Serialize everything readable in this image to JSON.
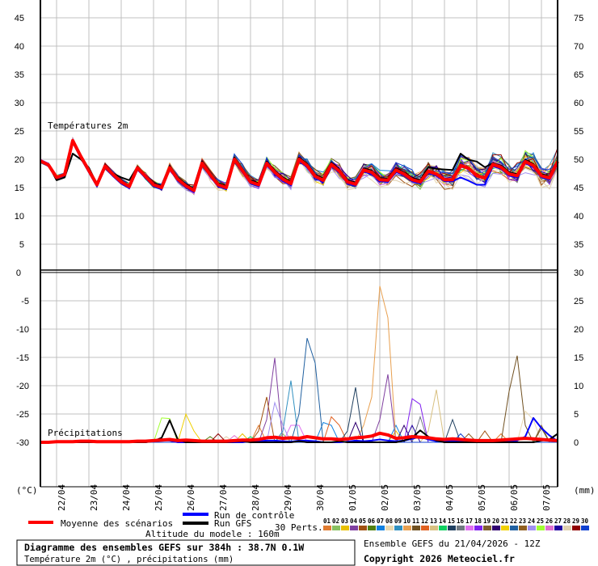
{
  "chart_data": {
    "type": "line",
    "title": "Diagramme des ensembles GEFS sur 384h : 38.7N 0.1W",
    "subtitle": "Température 2m (°C) , précipitations (mm)",
    "run_info": "Ensemble GEFS du 21/04/2026 - 12Z",
    "copyright": "Copyright 2026 Meteociel.fr",
    "altitude": "Altitude du modele : 160m",
    "time_step_hours": 6,
    "x_tick_labels": [
      "22/04",
      "23/04",
      "24/04",
      "25/04",
      "26/04",
      "27/04",
      "28/04",
      "29/04",
      "30/04",
      "01/05",
      "02/05",
      "03/05",
      "04/05",
      "05/05",
      "06/05",
      "07/05"
    ],
    "temperature_panel": {
      "label": "Températures 2m",
      "ylim": [
        0,
        45
      ],
      "left_ticks": [
        "45",
        "40",
        "35",
        "30",
        "25",
        "20",
        "15",
        "10",
        "5"
      ],
      "right_ticks": [
        "75",
        "70",
        "65",
        "60",
        "55",
        "50",
        "45",
        "40",
        "35"
      ],
      "mean": [
        19.7,
        19,
        16.8,
        17.3,
        23.3,
        20.5,
        18,
        15.5,
        18.8,
        17.3,
        16,
        15.2,
        18.5,
        17,
        15.5,
        15,
        18.5,
        16.5,
        15.3,
        14.5,
        19.3,
        17.3,
        15.5,
        15,
        20,
        18,
        16,
        15.5,
        19.3,
        17.7,
        16.5,
        15.7,
        20,
        18.9,
        17,
        16.3,
        19.1,
        17.9,
        16,
        15.6,
        18.1,
        17.7,
        16.4,
        16.3,
        18.1,
        17.4,
        16.4,
        16,
        17.9,
        17.4,
        16.4,
        16.4,
        18.9,
        18.4,
        17.1,
        16.7,
        19.1,
        18.6,
        17.4,
        17.1,
        19.6,
        18.9,
        17.1,
        16.7,
        19.6
      ],
      "gfs": [
        19.8,
        19,
        16.3,
        16.8,
        21,
        20,
        18.5,
        15.6,
        19,
        17.5,
        16.8,
        16.3,
        18.7,
        17.2,
        15.8,
        15.3,
        18.8,
        16.8,
        15.6,
        14.8,
        19.6,
        17.6,
        15.8,
        15.3,
        20.3,
        18.3,
        16.3,
        15.8,
        19.6,
        18,
        16.8,
        16,
        20.3,
        19.2,
        17.3,
        16.6,
        19.4,
        18.2,
        16.3,
        15.9,
        18.4,
        18,
        16.7,
        16.6,
        18.4,
        17.7,
        16.7,
        16.3,
        18.6,
        18.3,
        18.2,
        18.1,
        21,
        19.9,
        19.6,
        18.6,
        19.3,
        18.9,
        17.7,
        17.4,
        19.9,
        19.2,
        17.4,
        17,
        19.9
      ],
      "control": [
        19.6,
        18.8,
        16.7,
        17.1,
        23,
        20.2,
        17.7,
        15.2,
        18.5,
        17,
        15.7,
        14.9,
        18.2,
        16.7,
        15.2,
        14.7,
        18.2,
        16.2,
        15,
        14.2,
        19,
        17,
        15.2,
        14.7,
        19.7,
        17.7,
        15.7,
        15.2,
        19,
        17.4,
        16.2,
        15.4,
        19.7,
        18.6,
        16.7,
        16,
        18.8,
        17.6,
        15.7,
        15.3,
        17.8,
        17.4,
        16.1,
        16,
        17.8,
        17.1,
        16.1,
        15.7,
        17.6,
        17.1,
        16.1,
        16.1,
        16.8,
        16.2,
        15.5,
        15.5,
        18.8,
        18.3,
        17.1,
        16.8,
        19.3,
        18.6,
        16.8,
        16.4,
        19.3
      ],
      "member_spread_start_c": 0.35,
      "member_spread_end_c": 1.5
    },
    "precipitation_panel": {
      "label": "Précipitations",
      "ylim_mm": [
        0,
        30
      ],
      "left_ticks": [
        "0",
        "-5",
        "-10",
        "-15",
        "-20",
        "-25",
        "-30"
      ],
      "right_ticks": [
        "30",
        "25",
        "20",
        "15",
        "10",
        "5",
        "0"
      ],
      "mean": [
        0,
        0,
        0.1,
        0.1,
        0.1,
        0.2,
        0.2,
        0.1,
        0.1,
        0.1,
        0.1,
        0.1,
        0.2,
        0.2,
        0.3,
        0.4,
        0.5,
        0.3,
        0.4,
        0.3,
        0.2,
        0.2,
        0.2,
        0.2,
        0.3,
        0.4,
        0.4,
        0.5,
        0.8,
        0.9,
        0.7,
        0.8,
        0.7,
        1,
        0.8,
        0.6,
        0.6,
        0.5,
        0.6,
        0.8,
        0.9,
        1.1,
        1.6,
        1.3,
        0.7,
        0.8,
        1,
        0.9,
        0.8,
        0.6,
        0.5,
        0.6,
        0.5,
        0.4,
        0.3,
        0.3,
        0.3,
        0.4,
        0.5,
        0.6,
        0.7,
        0.6,
        0.5,
        0.4,
        0.3
      ],
      "gfs": [
        0,
        0,
        0,
        0,
        0,
        0,
        0,
        0,
        0,
        0,
        0,
        0,
        0,
        0,
        0.2,
        0.8,
        3.9,
        0.5,
        0,
        0,
        0,
        0,
        0,
        0,
        0.1,
        0.2,
        0,
        0,
        0,
        0,
        0,
        0,
        0.2,
        0,
        0,
        0,
        0,
        0.2,
        0,
        0,
        0,
        0,
        0,
        0,
        0,
        0.3,
        0.8,
        2.1,
        1,
        0.3,
        0,
        0,
        0,
        0,
        0,
        0,
        0,
        0,
        0,
        0,
        0,
        0,
        0.3,
        0.5,
        1.5
      ],
      "control": [
        0,
        0,
        0,
        0,
        0,
        0,
        0,
        0,
        0,
        0,
        0,
        0,
        0,
        0,
        0.3,
        0.4,
        0.3,
        0,
        0,
        0,
        0,
        0,
        0,
        0,
        0,
        0,
        0.2,
        0.2,
        0.3,
        0.3,
        0.2,
        0.1,
        0.3,
        0.3,
        0.2,
        0,
        0,
        0,
        0.1,
        0.3,
        0.2,
        0.3,
        0.5,
        0.3,
        0.2,
        0.3,
        0.6,
        1,
        0.5,
        0.2,
        0.2,
        0.3,
        0.1,
        0,
        0,
        0,
        0,
        0,
        0.2,
        0.3,
        1,
        4.3,
        2.5,
        1.2,
        0.2
      ]
    },
    "legend": {
      "mean": "Moyenne des scénarios",
      "control": "Run de contrôle",
      "gfs": "Run GFS",
      "perts": "30 Perts.",
      "unit_left": "(°C)",
      "unit_right": "(mm)"
    },
    "colors": {
      "mean": "#ff0000",
      "control": "#0000ff",
      "gfs": "#000000",
      "grid": "#c0c0c0"
    },
    "members": [
      {
        "id": "01",
        "color": "#e07b30",
        "precip_peaks": [
          [
            27,
            3
          ],
          [
            57,
            1.5
          ]
        ]
      },
      {
        "id": "02",
        "color": "#88c060",
        "precip_peaks": [
          [
            30,
            1.5
          ]
        ]
      },
      {
        "id": "03",
        "color": "#e8c000",
        "precip_peaks": [
          [
            44,
            2
          ],
          [
            25,
            1.5
          ]
        ]
      },
      {
        "id": "04",
        "color": "#8040a0",
        "precip_peaks": [
          [
            28,
            4
          ],
          [
            29,
            14.9
          ],
          [
            42,
            4
          ],
          [
            43,
            12
          ]
        ]
      },
      {
        "id": "05",
        "color": "#a05010",
        "precip_peaks": [
          [
            27,
            2
          ],
          [
            28,
            8
          ],
          [
            55,
            2
          ]
        ]
      },
      {
        "id": "06",
        "color": "#508010",
        "precip_peaks": [
          [
            21,
            1
          ]
        ]
      },
      {
        "id": "07",
        "color": "#1080e0",
        "precip_peaks": [
          [
            35,
            3.5
          ],
          [
            36,
            3
          ],
          [
            44,
            3
          ]
        ]
      },
      {
        "id": "08",
        "color": "#e8d8b0",
        "precip_peaks": [
          [
            60,
            5.5
          ],
          [
            61,
            4
          ]
        ]
      },
      {
        "id": "09",
        "color": "#3090c0",
        "precip_peaks": [
          [
            30,
            2
          ],
          [
            31,
            10.9
          ]
        ]
      },
      {
        "id": "10",
        "color": "#e8a050",
        "precip_peaks": [
          [
            40,
            3
          ],
          [
            41,
            8
          ],
          [
            42,
            27.6
          ],
          [
            43,
            22
          ]
        ]
      },
      {
        "id": "11",
        "color": "#705020",
        "precip_peaks": [
          [
            58,
            9
          ],
          [
            59,
            15.3
          ],
          [
            60,
            3
          ],
          [
            62,
            2.5
          ]
        ]
      },
      {
        "id": "12",
        "color": "#e06020",
        "precip_peaks": [
          [
            36,
            4.5
          ],
          [
            37,
            3
          ]
        ]
      },
      {
        "id": "13",
        "color": "#d8c080",
        "precip_peaks": [
          [
            48,
            2
          ],
          [
            49,
            9.3
          ]
        ]
      },
      {
        "id": "14",
        "color": "#10d060",
        "precip_peaks": [
          [
            26,
            1
          ]
        ]
      },
      {
        "id": "15",
        "color": "#204060",
        "precip_peaks": [
          [
            38,
            2
          ],
          [
            39,
            9.7
          ],
          [
            51,
            4
          ]
        ]
      },
      {
        "id": "16",
        "color": "#707880",
        "precip_peaks": [
          [
            47,
            4.5
          ]
        ]
      },
      {
        "id": "17",
        "color": "#e070f0",
        "precip_peaks": [
          [
            31,
            3
          ],
          [
            32,
            3
          ]
        ]
      },
      {
        "id": "18",
        "color": "#8020f0",
        "precip_peaks": [
          [
            46,
            7.7
          ],
          [
            47,
            6.7
          ]
        ]
      },
      {
        "id": "19",
        "color": "#806030",
        "precip_peaks": [
          [
            62,
            3
          ]
        ]
      },
      {
        "id": "20",
        "color": "#300070",
        "precip_peaks": [
          [
            39,
            3.5
          ],
          [
            45,
            3
          ]
        ]
      },
      {
        "id": "21",
        "color": "#f0d000",
        "precip_peaks": [
          [
            18,
            5
          ],
          [
            19,
            2
          ]
        ]
      },
      {
        "id": "22",
        "color": "#2060a0",
        "precip_peaks": [
          [
            32,
            5
          ],
          [
            33,
            18.4
          ],
          [
            34,
            14
          ]
        ]
      },
      {
        "id": "23",
        "color": "#906020",
        "precip_peaks": [
          [
            53,
            1.5
          ]
        ]
      },
      {
        "id": "24",
        "color": "#a090f0",
        "precip_peaks": [
          [
            29,
            7
          ],
          [
            30,
            3
          ]
        ]
      },
      {
        "id": "25",
        "color": "#a0ff30",
        "precip_peaks": [
          [
            15,
            4.3
          ],
          [
            16,
            4.2
          ]
        ]
      },
      {
        "id": "26",
        "color": "#e070d0",
        "precip_peaks": [
          [
            24,
            1.2
          ]
        ]
      },
      {
        "id": "27",
        "color": "#2000a0",
        "precip_peaks": [
          [
            46,
            3
          ]
        ]
      },
      {
        "id": "28",
        "color": "#e0d0b0",
        "precip_peaks": [
          [
            23,
            1
          ]
        ]
      },
      {
        "id": "29",
        "color": "#900000",
        "precip_peaks": [
          [
            22,
            1.5
          ]
        ]
      },
      {
        "id": "30",
        "color": "#1040d0",
        "precip_peaks": [
          [
            52,
            1.5
          ]
        ]
      }
    ]
  }
}
